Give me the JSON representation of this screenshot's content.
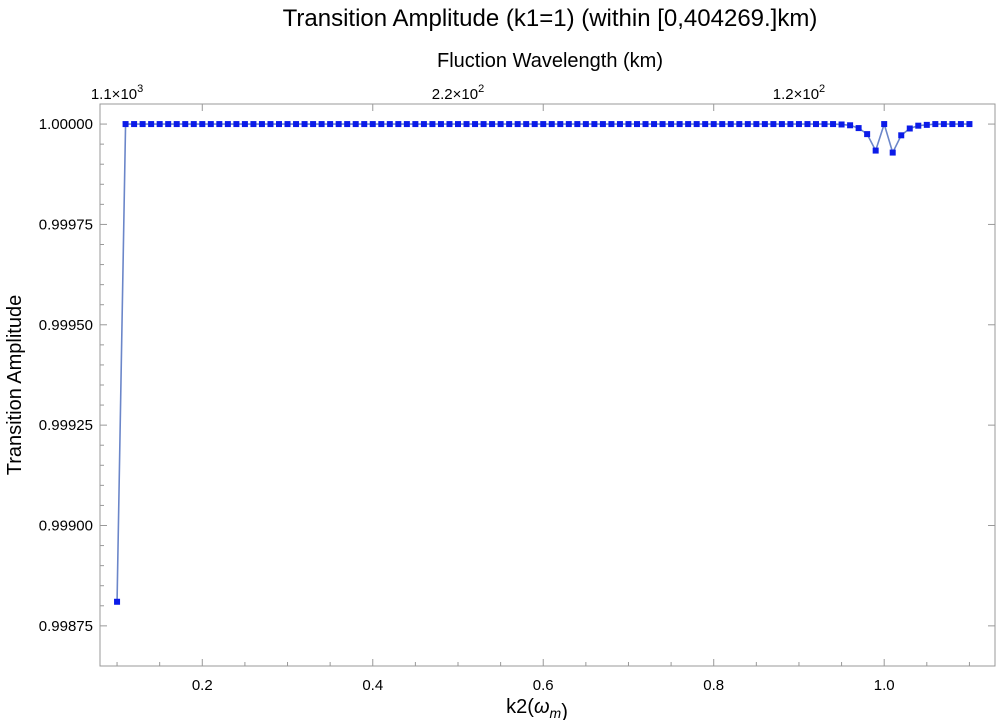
{
  "chart_data": {
    "type": "line",
    "title": "Transition Amplitude (k1=1) (within [0,404269.]km)",
    "xlabel_html": "k2(<tspan font-style=\"italic\">ω</tspan><tspan font-style=\"italic\" font-size=\"14\" dy=\"5\">m</tspan>)",
    "xlabel": "k2(ωm)",
    "ylabel": "Transition Amplitude",
    "top_xlabel": "Fluction Wavelength (km)",
    "xlim": [
      0.08,
      1.13
    ],
    "ylim": [
      0.99865,
      1.00005
    ],
    "x_ticks": [
      0.2,
      0.4,
      0.6,
      0.8,
      1.0
    ],
    "x_tick_labels": [
      "0.2",
      "0.4",
      "0.6",
      "0.8",
      "1.0"
    ],
    "y_ticks": [
      0.99875,
      0.999,
      0.99925,
      0.9995,
      0.99975,
      1.0
    ],
    "y_tick_labels": [
      "0.99875",
      "0.99900",
      "0.99925",
      "0.99950",
      "0.99975",
      "1.00000"
    ],
    "top_ticks": [
      {
        "at": 0.1,
        "mantissa": "1.1",
        "exp": "3"
      },
      {
        "at": 0.5,
        "mantissa": "2.2",
        "exp": "2"
      },
      {
        "at": 0.9,
        "mantissa": "1.2",
        "exp": "2"
      }
    ],
    "grid": false,
    "legend": "none",
    "colors": {
      "line": "#6b86c9",
      "marker": "#0b1be8",
      "frame": "#999999"
    },
    "series": [
      {
        "x": [
          0.1,
          0.11,
          0.12,
          0.13,
          0.14,
          0.15,
          0.16,
          0.17,
          0.18,
          0.19,
          0.2,
          0.21,
          0.22,
          0.23,
          0.24,
          0.25,
          0.26,
          0.27,
          0.28,
          0.29,
          0.3,
          0.31,
          0.32,
          0.33,
          0.34,
          0.35,
          0.36,
          0.37,
          0.38,
          0.39,
          0.4,
          0.41,
          0.42,
          0.43,
          0.44,
          0.45,
          0.46,
          0.47,
          0.48,
          0.49,
          0.5,
          0.51,
          0.52,
          0.53,
          0.54,
          0.55,
          0.56,
          0.57,
          0.58,
          0.59,
          0.6,
          0.61,
          0.62,
          0.63,
          0.64,
          0.65,
          0.66,
          0.67,
          0.68,
          0.69,
          0.7,
          0.71,
          0.72,
          0.73,
          0.74,
          0.75,
          0.76,
          0.77,
          0.78,
          0.79,
          0.8,
          0.81,
          0.82,
          0.83,
          0.84,
          0.85,
          0.86,
          0.87,
          0.88,
          0.89,
          0.9,
          0.91,
          0.92,
          0.93,
          0.94,
          0.95,
          0.96,
          0.97,
          0.98,
          0.99,
          1.0,
          1.01,
          1.02,
          1.03,
          1.04,
          1.05,
          1.06,
          1.07,
          1.08,
          1.09,
          1.1
        ],
        "y": [
          0.99881,
          1.0,
          1.0,
          1.0,
          1.0,
          1.0,
          1.0,
          1.0,
          1.0,
          1.0,
          1.0,
          1.0,
          1.0,
          1.0,
          1.0,
          1.0,
          1.0,
          1.0,
          1.0,
          1.0,
          1.0,
          1.0,
          1.0,
          1.0,
          1.0,
          1.0,
          1.0,
          1.0,
          1.0,
          1.0,
          1.0,
          1.0,
          1.0,
          1.0,
          1.0,
          1.0,
          1.0,
          1.0,
          1.0,
          1.0,
          1.0,
          1.0,
          1.0,
          1.0,
          1.0,
          1.0,
          1.0,
          1.0,
          1.0,
          1.0,
          1.0,
          1.0,
          1.0,
          1.0,
          1.0,
          1.0,
          1.0,
          1.0,
          1.0,
          1.0,
          1.0,
          1.0,
          1.0,
          1.0,
          1.0,
          1.0,
          1.0,
          1.0,
          1.0,
          1.0,
          1.0,
          1.0,
          1.0,
          1.0,
          1.0,
          1.0,
          1.0,
          1.0,
          1.0,
          1.0,
          1.0,
          1.0,
          1.0,
          1.0,
          1.0,
          0.999999,
          0.999997,
          0.99999,
          0.999975,
          0.999934,
          1.0,
          0.999929,
          0.999972,
          0.999989,
          0.999996,
          0.999998,
          1.0,
          1.0,
          1.0,
          1.0,
          1.0
        ]
      }
    ]
  }
}
